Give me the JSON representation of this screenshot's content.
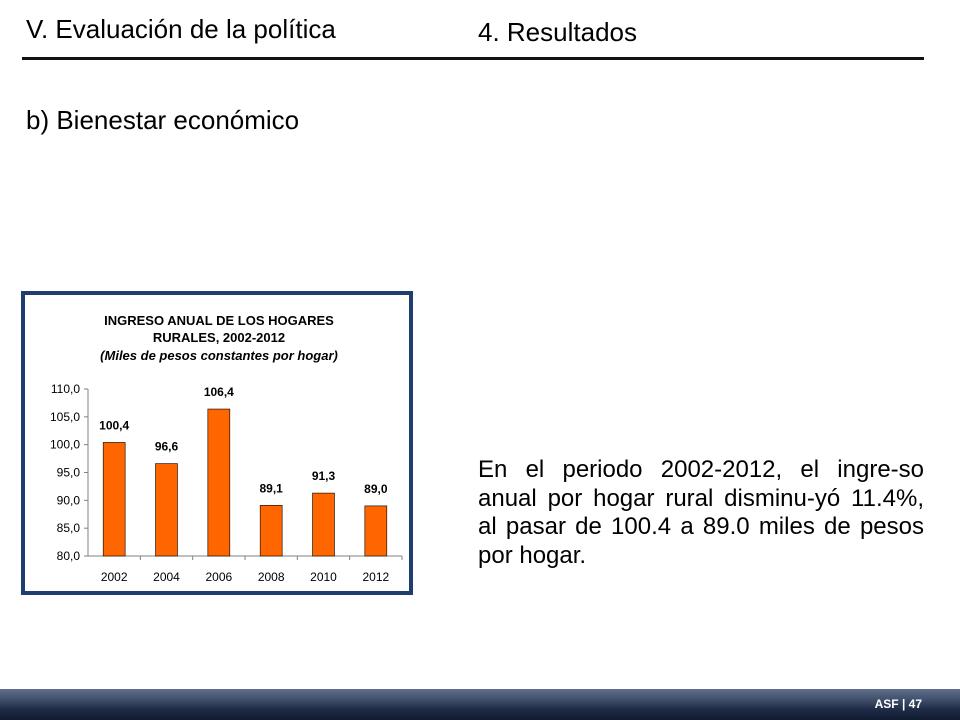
{
  "header": {
    "section_title": "V. Evaluación de la política",
    "subsection_title": "4. Resultados"
  },
  "subtitle": "b) Bienestar económico",
  "body_text": "En el periodo 2002-2012, el ingre-so anual por hogar rural disminu-yó 11.4%, al pasar de 100.4 a 89.0 miles de pesos por hogar.",
  "footer": {
    "label": "ASF | 47"
  },
  "colors": {
    "bar": "#ff6600",
    "frame": "#1f3d6e",
    "footer": "#1f2c47"
  },
  "chart_data": {
    "type": "bar",
    "title_line1": "INGRESO ANUAL DE LOS HOGARES",
    "title_line2": "RURALES, 2002-2012",
    "subtitle": "(Miles de pesos constantes por hogar)",
    "categories": [
      "2002",
      "2004",
      "2006",
      "2008",
      "2010",
      "2012"
    ],
    "values": [
      100.4,
      96.6,
      106.4,
      89.1,
      91.3,
      89.0
    ],
    "data_labels": [
      "100,4",
      "96,6",
      "106,4",
      "89,1",
      "91,3",
      "89,0"
    ],
    "y_ticks": [
      80,
      85,
      90,
      95,
      100,
      105,
      110
    ],
    "y_tick_labels": [
      "80,0",
      "85,0",
      "90,0",
      "95,0",
      "100,0",
      "105,0",
      "110,0"
    ],
    "ylim": [
      80,
      110
    ],
    "grid": false,
    "legend": "none"
  }
}
